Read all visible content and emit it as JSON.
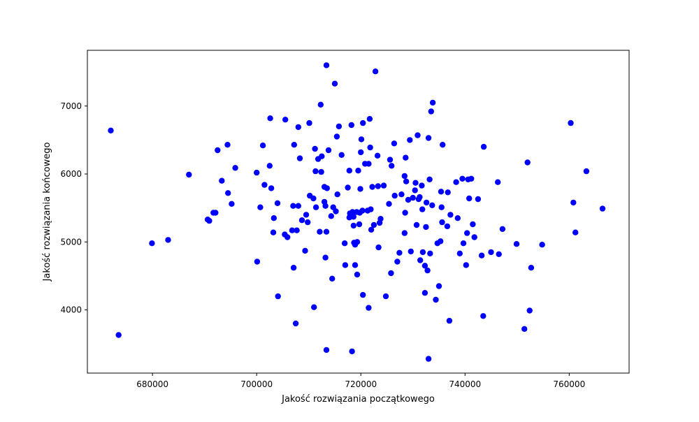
{
  "chart_data": {
    "type": "scatter",
    "title": "",
    "xlabel": "Jakość rozwiązania początkowego",
    "ylabel": "Jakość rozwiązania końcowego",
    "xlim": [
      667500,
      771500
    ],
    "ylim": [
      3070,
      7820
    ],
    "xticks": [
      680000,
      700000,
      720000,
      740000,
      760000
    ],
    "xtick_labels": [
      "680000",
      "700000",
      "720000",
      "740000",
      "760000"
    ],
    "yticks": [
      4000,
      5000,
      6000,
      7000
    ],
    "ytick_labels": [
      "4000",
      "5000",
      "6000",
      "7000"
    ],
    "grid": false,
    "marker_color": "#0000ff",
    "series": [
      {
        "points": [
          [
            672000,
            6640
          ],
          [
            673500,
            3630
          ],
          [
            679900,
            4980
          ],
          [
            683000,
            5030
          ],
          [
            687000,
            5990
          ],
          [
            690600,
            5330
          ],
          [
            690900,
            5310
          ],
          [
            691700,
            5430
          ],
          [
            692100,
            5430
          ],
          [
            692500,
            6350
          ],
          [
            693300,
            5900
          ],
          [
            694400,
            6430
          ],
          [
            694500,
            5720
          ],
          [
            695200,
            5560
          ],
          [
            695900,
            6090
          ],
          [
            700000,
            6020
          ],
          [
            700100,
            4710
          ],
          [
            700700,
            5510
          ],
          [
            701200,
            6420
          ],
          [
            701500,
            5840
          ],
          [
            702500,
            6120
          ],
          [
            702600,
            6820
          ],
          [
            702800,
            5790
          ],
          [
            703200,
            5140
          ],
          [
            703300,
            5350
          ],
          [
            704000,
            5570
          ],
          [
            704100,
            4200
          ],
          [
            705400,
            5110
          ],
          [
            705500,
            6800
          ],
          [
            705900,
            5070
          ],
          [
            706800,
            5170
          ],
          [
            707000,
            5530
          ],
          [
            707100,
            4620
          ],
          [
            707200,
            6430
          ],
          [
            707500,
            3800
          ],
          [
            707700,
            5170
          ],
          [
            708000,
            5530
          ],
          [
            708000,
            6690
          ],
          [
            708300,
            6230
          ],
          [
            708700,
            5320
          ],
          [
            709300,
            4870
          ],
          [
            709500,
            5400
          ],
          [
            709800,
            5290
          ],
          [
            710100,
            6750
          ],
          [
            710200,
            5680
          ],
          [
            710900,
            5640
          ],
          [
            711000,
            4040
          ],
          [
            711200,
            6370
          ],
          [
            711300,
            6040
          ],
          [
            711400,
            5510
          ],
          [
            711800,
            6220
          ],
          [
            712100,
            5150
          ],
          [
            712300,
            7020
          ],
          [
            712400,
            6030
          ],
          [
            712500,
            6260
          ],
          [
            713000,
            5590
          ],
          [
            713000,
            5810
          ],
          [
            713200,
            5530
          ],
          [
            713200,
            4770
          ],
          [
            713400,
            5150
          ],
          [
            713400,
            7600
          ],
          [
            713400,
            3410
          ],
          [
            713500,
            5790
          ],
          [
            713800,
            6350
          ],
          [
            714300,
            5380
          ],
          [
            714500,
            4460
          ],
          [
            714700,
            5510
          ],
          [
            715000,
            7330
          ],
          [
            715200,
            5450
          ],
          [
            715400,
            6550
          ],
          [
            715500,
            5700
          ],
          [
            715800,
            6700
          ],
          [
            716300,
            6280
          ],
          [
            716900,
            4980
          ],
          [
            717000,
            4660
          ],
          [
            717500,
            5800
          ],
          [
            717800,
            5360
          ],
          [
            717800,
            6050
          ],
          [
            717900,
            5420
          ],
          [
            718200,
            6720
          ],
          [
            718300,
            3390
          ],
          [
            718400,
            5440
          ],
          [
            718600,
            5240
          ],
          [
            718600,
            5370
          ],
          [
            718700,
            4990
          ],
          [
            718900,
            4660
          ],
          [
            718900,
            4960
          ],
          [
            719200,
            5440
          ],
          [
            719300,
            5000
          ],
          [
            719300,
            4520
          ],
          [
            719500,
            6050
          ],
          [
            719700,
            5260
          ],
          [
            719800,
            5430
          ],
          [
            719900,
            5780
          ],
          [
            720000,
            6320
          ],
          [
            720100,
            6510
          ],
          [
            720300,
            5460
          ],
          [
            720400,
            6750
          ],
          [
            720400,
            4220
          ],
          [
            720800,
            6150
          ],
          [
            721300,
            5460
          ],
          [
            721500,
            6150
          ],
          [
            721500,
            4030
          ],
          [
            721700,
            6810
          ],
          [
            721800,
            6390
          ],
          [
            721900,
            5480
          ],
          [
            722000,
            5180
          ],
          [
            722200,
            5810
          ],
          [
            722500,
            5250
          ],
          [
            722800,
            7510
          ],
          [
            723200,
            6270
          ],
          [
            723300,
            5820
          ],
          [
            723400,
            4920
          ],
          [
            723600,
            5280
          ],
          [
            723800,
            5340
          ],
          [
            724400,
            5830
          ],
          [
            724800,
            4200
          ],
          [
            725400,
            5560
          ],
          [
            725600,
            6210
          ],
          [
            725800,
            4540
          ],
          [
            725900,
            6120
          ],
          [
            726400,
            6450
          ],
          [
            726500,
            5680
          ],
          [
            727000,
            4710
          ],
          [
            727400,
            4840
          ],
          [
            727800,
            5700
          ],
          [
            728400,
            5130
          ],
          [
            728400,
            5970
          ],
          [
            728500,
            5430
          ],
          [
            728600,
            6240
          ],
          [
            728700,
            5890
          ],
          [
            729100,
            5620
          ],
          [
            729400,
            6500
          ],
          [
            729600,
            4860
          ],
          [
            730000,
            5650
          ],
          [
            730400,
            5760
          ],
          [
            730500,
            5870
          ],
          [
            730700,
            5250
          ],
          [
            730900,
            6570
          ],
          [
            731100,
            5630
          ],
          [
            731300,
            5660
          ],
          [
            731400,
            4730
          ],
          [
            731700,
            5830
          ],
          [
            731800,
            5480
          ],
          [
            731900,
            4850
          ],
          [
            732300,
            4250
          ],
          [
            732300,
            4650
          ],
          [
            732500,
            5220
          ],
          [
            732600,
            5580
          ],
          [
            732800,
            4580
          ],
          [
            733000,
            3280
          ],
          [
            733000,
            6530
          ],
          [
            733200,
            5920
          ],
          [
            733300,
            4830
          ],
          [
            733500,
            6920
          ],
          [
            733700,
            5540
          ],
          [
            733800,
            7050
          ],
          [
            734400,
            4150
          ],
          [
            734700,
            4980
          ],
          [
            735000,
            4350
          ],
          [
            735300,
            5010
          ],
          [
            735400,
            5740
          ],
          [
            735500,
            5510
          ],
          [
            735600,
            5290
          ],
          [
            735700,
            6430
          ],
          [
            736600,
            5230
          ],
          [
            736700,
            5730
          ],
          [
            737000,
            3840
          ],
          [
            737200,
            5400
          ],
          [
            738300,
            5880
          ],
          [
            738600,
            5350
          ],
          [
            739000,
            4830
          ],
          [
            739500,
            5930
          ],
          [
            739700,
            4980
          ],
          [
            740200,
            4660
          ],
          [
            740400,
            5130
          ],
          [
            740600,
            5920
          ],
          [
            740800,
            5640
          ],
          [
            741200,
            5930
          ],
          [
            741500,
            5260
          ],
          [
            741800,
            5070
          ],
          [
            742500,
            5630
          ],
          [
            743200,
            4800
          ],
          [
            743500,
            3910
          ],
          [
            743600,
            6400
          ],
          [
            745000,
            4850
          ],
          [
            746300,
            5880
          ],
          [
            746500,
            4820
          ],
          [
            747200,
            5190
          ],
          [
            749900,
            4970
          ],
          [
            751400,
            3720
          ],
          [
            752000,
            6170
          ],
          [
            752400,
            3990
          ],
          [
            752700,
            4620
          ],
          [
            754800,
            4960
          ],
          [
            760300,
            6750
          ],
          [
            760800,
            5580
          ],
          [
            761200,
            5140
          ],
          [
            763300,
            6040
          ],
          [
            766400,
            5490
          ]
        ]
      }
    ]
  }
}
